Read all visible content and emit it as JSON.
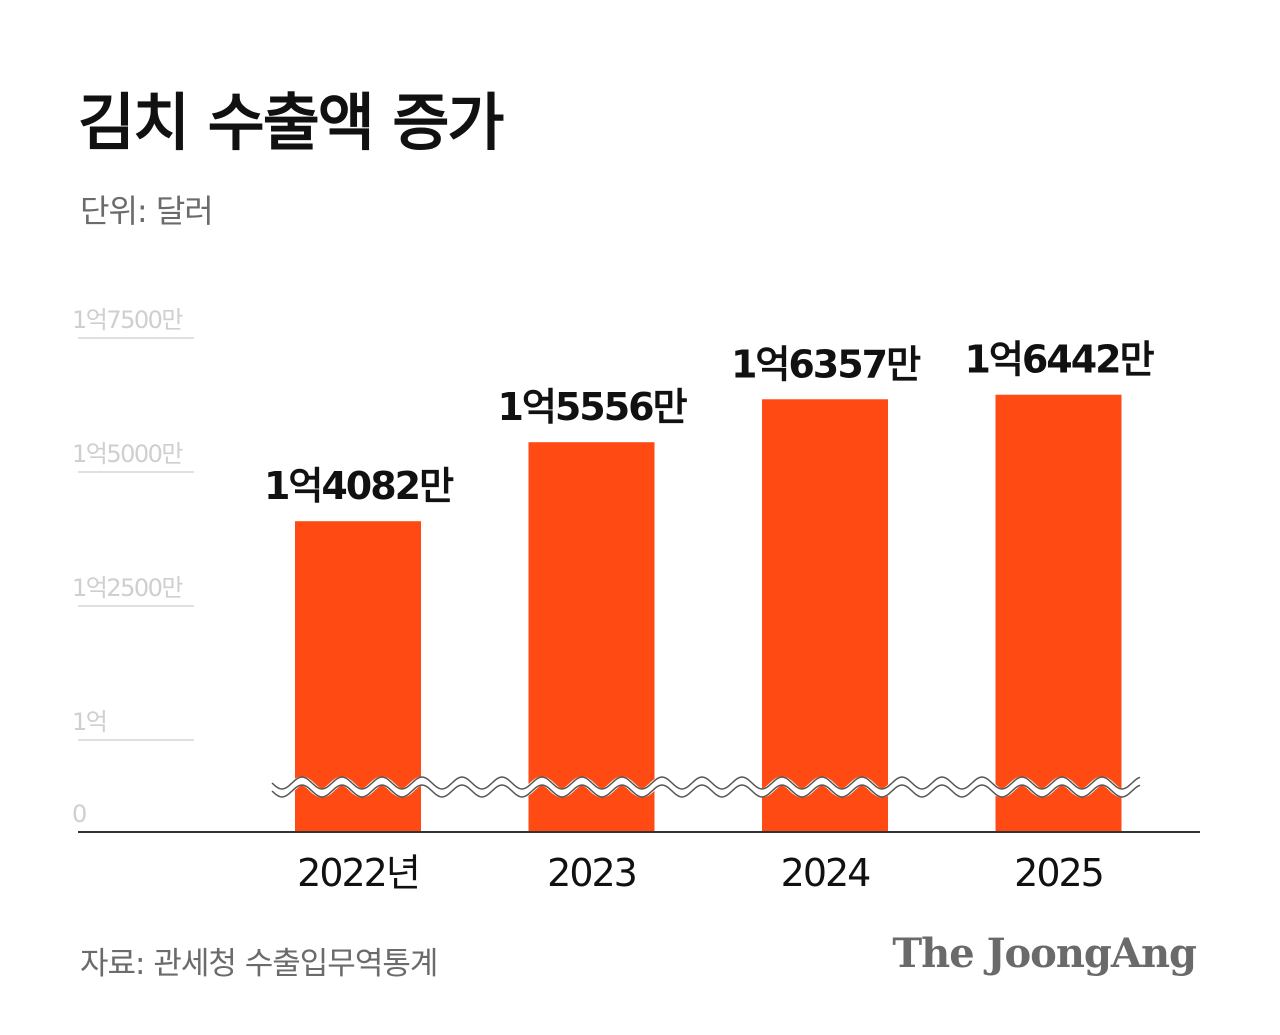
{
  "header": {
    "title": "김치 수출액 증가",
    "unit": "단위: 달러"
  },
  "footer": {
    "source": "자료: 관세청 수출입무역통계",
    "logo": "The JoongAng"
  },
  "colors": {
    "bar": "#ff4a14",
    "grid": "#d6d6d6",
    "tick_label": "#cfcfcf",
    "axis": "#333333",
    "data_label": "#111111",
    "category_label": "#111111"
  },
  "chart_data": {
    "type": "bar",
    "categories": [
      "2022년",
      "2023",
      "2024",
      "2025"
    ],
    "values": [
      140820000,
      155560000,
      163570000,
      164420000
    ],
    "data_labels": [
      "1억4082만",
      "1억5556만",
      "1억6357만",
      "1억6442만"
    ],
    "y_ticks": [
      {
        "value": 0,
        "label": "0"
      },
      {
        "value": 100000000,
        "label": "1억"
      },
      {
        "value": 125000000,
        "label": "1억2500만"
      },
      {
        "value": 150000000,
        "label": "1억5000만"
      },
      {
        "value": 175000000,
        "label": "1억7500만"
      }
    ],
    "axis_break": "between 0 and 1억",
    "grid": true,
    "legend": "none"
  }
}
